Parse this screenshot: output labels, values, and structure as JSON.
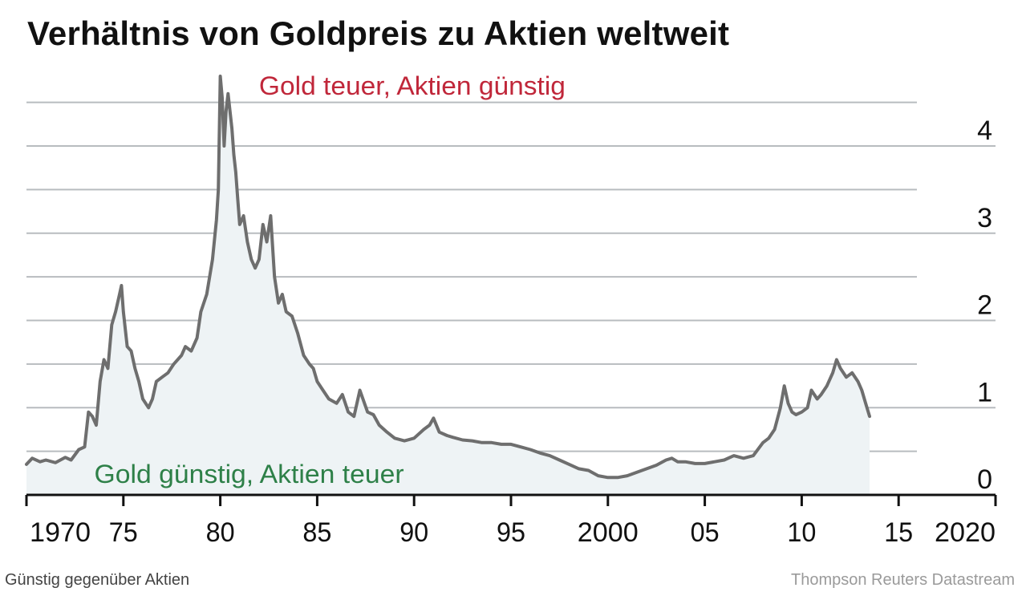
{
  "title": "Verhältnis von Goldpreis zu Aktien weltweit",
  "footer": {
    "caption": "Günstig gegenüber Aktien",
    "source": "Thompson Reuters Datastream"
  },
  "colors": {
    "line": "#6e6e6e",
    "area": "#eef3f5",
    "grid": "#b8bcbf",
    "top_annotation": "#c0273a",
    "bottom_annotation": "#2e8048",
    "text": "#111111"
  },
  "chart_data": {
    "type": "area",
    "title": "Verhältnis von Goldpreis zu Aktien weltweit",
    "xlabel": "",
    "ylabel": "",
    "xlim": [
      1970,
      2020
    ],
    "ylim": [
      0,
      4.8
    ],
    "grid": true,
    "y_axis_side": "right",
    "x_ticks": [
      {
        "value": 1970,
        "label": "1970"
      },
      {
        "value": 1975,
        "label": "75"
      },
      {
        "value": 1980,
        "label": "80"
      },
      {
        "value": 1985,
        "label": "85"
      },
      {
        "value": 1990,
        "label": "90"
      },
      {
        "value": 1995,
        "label": "95"
      },
      {
        "value": 2000,
        "label": "2000"
      },
      {
        "value": 2005,
        "label": "05"
      },
      {
        "value": 2010,
        "label": "10"
      },
      {
        "value": 2015,
        "label": "15"
      },
      {
        "value": 2020,
        "label": "2020"
      }
    ],
    "y_ticks": [
      {
        "value": 0,
        "label": "0"
      },
      {
        "value": 1,
        "label": "1"
      },
      {
        "value": 2,
        "label": "2"
      },
      {
        "value": 3,
        "label": "3"
      },
      {
        "value": 4,
        "label": "4"
      }
    ],
    "annotations": [
      {
        "text": "Gold teuer, Aktien günstig",
        "x": 1982.0,
        "y": 4.7,
        "color": "#c0273a"
      },
      {
        "text": "Gold günstig, Aktien teuer",
        "x": 1973.5,
        "y": 0.25,
        "color": "#2e8048"
      }
    ],
    "x": [
      1970.0,
      1970.3,
      1970.7,
      1971.0,
      1971.5,
      1972.0,
      1972.3,
      1972.7,
      1973.0,
      1973.2,
      1973.4,
      1973.6,
      1973.8,
      1974.0,
      1974.2,
      1974.4,
      1974.6,
      1974.8,
      1974.9,
      1975.0,
      1975.2,
      1975.4,
      1975.6,
      1975.8,
      1976.0,
      1976.3,
      1976.5,
      1976.7,
      1977.0,
      1977.3,
      1977.6,
      1978.0,
      1978.2,
      1978.5,
      1978.8,
      1979.0,
      1979.3,
      1979.6,
      1979.8,
      1979.9,
      1980.0,
      1980.1,
      1980.2,
      1980.3,
      1980.4,
      1980.5,
      1980.6,
      1980.7,
      1980.8,
      1980.9,
      1981.0,
      1981.2,
      1981.4,
      1981.6,
      1981.8,
      1982.0,
      1982.2,
      1982.4,
      1982.6,
      1982.8,
      1983.0,
      1983.2,
      1983.4,
      1983.7,
      1984.0,
      1984.3,
      1984.6,
      1984.8,
      1985.0,
      1985.3,
      1985.6,
      1986.0,
      1986.3,
      1986.6,
      1986.9,
      1987.2,
      1987.6,
      1987.9,
      1988.2,
      1988.6,
      1989.0,
      1989.5,
      1990.0,
      1990.5,
      1990.8,
      1991.0,
      1991.3,
      1991.7,
      1992.0,
      1992.5,
      1993.0,
      1993.5,
      1994.0,
      1994.5,
      1995.0,
      1995.5,
      1996.0,
      1996.5,
      1997.0,
      1997.5,
      1998.0,
      1998.5,
      1999.0,
      1999.5,
      2000.0,
      2000.5,
      2001.0,
      2001.5,
      2002.0,
      2002.5,
      2003.0,
      2003.3,
      2003.6,
      2004.0,
      2004.5,
      2005.0,
      2005.5,
      2006.0,
      2006.5,
      2007.0,
      2007.5,
      2008.0,
      2008.3,
      2008.6,
      2008.9,
      2009.1,
      2009.3,
      2009.5,
      2009.7,
      2010.0,
      2010.3,
      2010.5,
      2010.8,
      2011.0,
      2011.3,
      2011.6,
      2011.8,
      2012.0,
      2012.3,
      2012.6,
      2012.9,
      2013.1,
      2013.3,
      2013.5
    ],
    "values": [
      0.35,
      0.42,
      0.38,
      0.4,
      0.37,
      0.43,
      0.4,
      0.52,
      0.55,
      0.95,
      0.9,
      0.8,
      1.3,
      1.55,
      1.45,
      1.95,
      2.1,
      2.3,
      2.4,
      2.1,
      1.7,
      1.65,
      1.45,
      1.3,
      1.1,
      1.0,
      1.1,
      1.3,
      1.35,
      1.4,
      1.5,
      1.6,
      1.7,
      1.65,
      1.8,
      2.1,
      2.3,
      2.7,
      3.15,
      3.5,
      4.8,
      4.55,
      4.0,
      4.4,
      4.6,
      4.4,
      4.2,
      3.9,
      3.7,
      3.4,
      3.1,
      3.2,
      2.9,
      2.7,
      2.6,
      2.7,
      3.1,
      2.9,
      3.2,
      2.5,
      2.2,
      2.3,
      2.1,
      2.05,
      1.85,
      1.6,
      1.5,
      1.45,
      1.3,
      1.2,
      1.1,
      1.05,
      1.15,
      0.95,
      0.9,
      1.2,
      0.95,
      0.92,
      0.8,
      0.72,
      0.65,
      0.62,
      0.65,
      0.75,
      0.8,
      0.88,
      0.72,
      0.68,
      0.66,
      0.63,
      0.62,
      0.6,
      0.6,
      0.58,
      0.58,
      0.55,
      0.52,
      0.48,
      0.45,
      0.4,
      0.35,
      0.3,
      0.28,
      0.22,
      0.2,
      0.2,
      0.22,
      0.26,
      0.3,
      0.34,
      0.4,
      0.42,
      0.38,
      0.38,
      0.36,
      0.36,
      0.38,
      0.4,
      0.45,
      0.42,
      0.45,
      0.6,
      0.65,
      0.75,
      1.0,
      1.25,
      1.05,
      0.95,
      0.92,
      0.95,
      1.0,
      1.2,
      1.1,
      1.15,
      1.25,
      1.4,
      1.55,
      1.45,
      1.35,
      1.4,
      1.3,
      1.2,
      1.05,
      0.9
    ]
  }
}
